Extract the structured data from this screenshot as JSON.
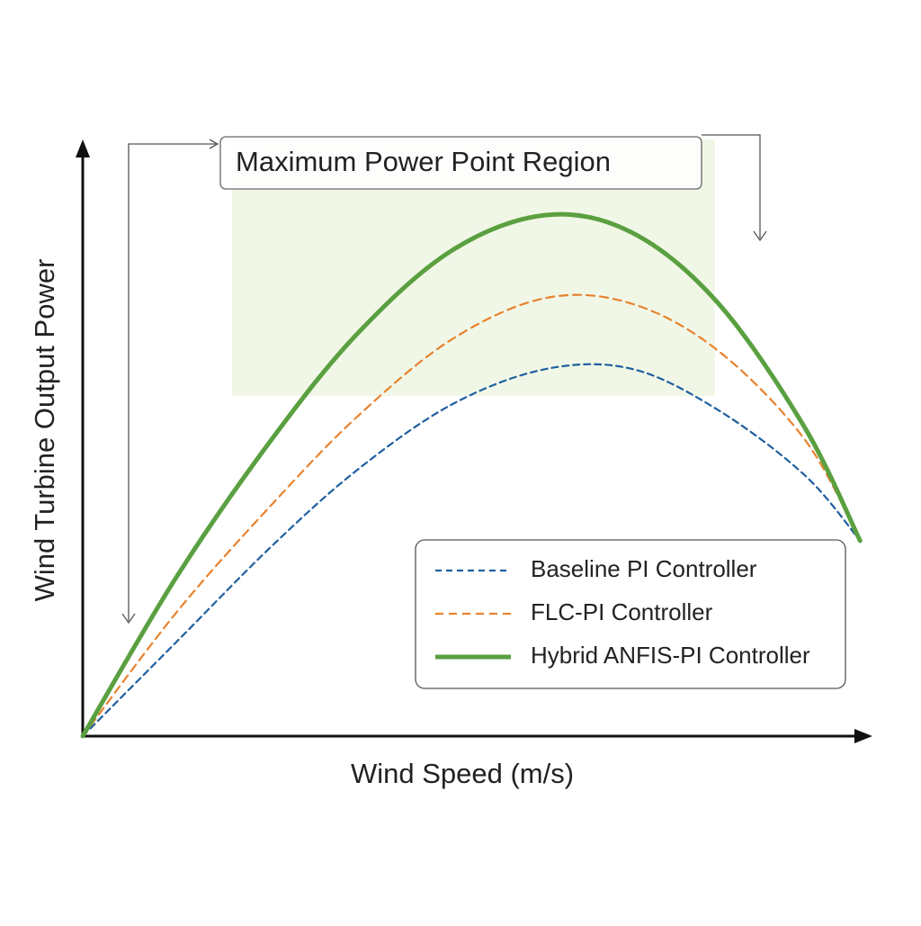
{
  "chart_data": {
    "type": "line",
    "title": "Maximum Power Point Region",
    "x_label": "Wind Speed (m/s)",
    "y_label": "Wind Turbine Output Power",
    "x": [
      0,
      12,
      24,
      35,
      47,
      59,
      70,
      81,
      92,
      99
    ],
    "xlim": [
      0,
      100
    ],
    "ylim": [
      0,
      100
    ],
    "series": [
      {
        "name": "Baseline PI Controller",
        "color": "#1f5fa0",
        "dash": "7 5",
        "width": 2.2,
        "values": [
          0,
          16,
          32,
          45,
          56,
          62,
          62,
          55,
          44,
          33
        ]
      },
      {
        "name": "FLC-PI Controller",
        "color": "#e8822e",
        "dash": "9 6",
        "width": 2.2,
        "values": [
          0,
          21,
          39,
          54,
          67,
          74,
          73,
          65,
          50,
          33
        ]
      },
      {
        "name": "Hybrid ANFIS-PI Controller",
        "color": "#5aa040",
        "dash": "none",
        "width": 5,
        "values": [
          0,
          27,
          50,
          68,
          82,
          88,
          85,
          73,
          52,
          33
        ]
      }
    ],
    "legend": "lower-right"
  }
}
